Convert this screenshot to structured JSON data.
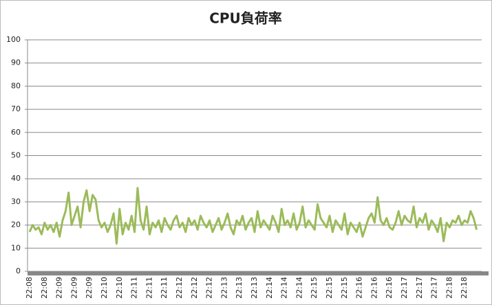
{
  "chart_data": {
    "type": "line",
    "title": "CPU負荷率",
    "categories": [
      "22:08",
      null,
      null,
      null,
      null,
      "22:08",
      null,
      null,
      null,
      null,
      "22:09",
      null,
      null,
      null,
      null,
      "22:09",
      null,
      null,
      null,
      null,
      "22:09",
      null,
      null,
      null,
      null,
      "22:10",
      null,
      null,
      null,
      null,
      "22:10",
      null,
      null,
      null,
      null,
      "22:11",
      null,
      null,
      null,
      null,
      "22:11",
      null,
      null,
      null,
      null,
      "22:11",
      null,
      null,
      null,
      null,
      "22:12",
      null,
      null,
      null,
      null,
      "22:12",
      null,
      null,
      null,
      null,
      "22:12",
      null,
      null,
      null,
      null,
      "22:13",
      null,
      null,
      null,
      null,
      "22:13",
      null,
      null,
      null,
      null,
      "22:13",
      null,
      null,
      null,
      null,
      "22:14",
      null,
      null,
      null,
      null,
      "22:14",
      null,
      null,
      null,
      null,
      "22:14",
      null,
      null,
      null,
      null,
      "22:15",
      null,
      null,
      null,
      null,
      "22:15",
      null,
      null,
      null,
      null,
      "22:15",
      null,
      null,
      null,
      null,
      "22:16",
      null,
      null,
      null,
      null,
      "22:16",
      null,
      null,
      null,
      null,
      "22:16",
      null,
      null,
      null,
      null,
      "22:17",
      null,
      null,
      null,
      null,
      "22:17",
      null,
      null,
      null,
      null,
      "22:17",
      null,
      null,
      null,
      null,
      "22:18",
      null,
      null,
      null,
      null,
      "22:18",
      null,
      null,
      null,
      null
    ],
    "values": [
      17,
      20,
      18,
      19,
      16,
      21,
      18,
      20,
      17,
      21,
      15,
      22,
      26,
      34,
      20,
      24,
      28,
      19,
      30,
      35,
      26,
      33,
      31,
      22,
      19,
      21,
      17,
      20,
      25,
      12,
      27,
      16,
      21,
      18,
      24,
      17,
      36,
      22,
      18,
      28,
      16,
      21,
      19,
      22,
      17,
      23,
      20,
      18,
      22,
      24,
      19,
      21,
      17,
      23,
      20,
      22,
      18,
      24,
      21,
      19,
      22,
      17,
      20,
      23,
      18,
      21,
      25,
      19,
      16,
      22,
      20,
      24,
      18,
      21,
      23,
      17,
      26,
      19,
      22,
      20,
      18,
      24,
      21,
      17,
      27,
      20,
      22,
      19,
      25,
      18,
      21,
      28,
      19,
      22,
      20,
      18,
      29,
      23,
      21,
      19,
      24,
      17,
      22,
      20,
      18,
      25,
      16,
      21,
      19,
      17,
      21,
      15,
      19,
      23,
      25,
      21,
      32,
      22,
      20,
      23,
      19,
      18,
      21,
      26,
      20,
      24,
      22,
      21,
      28,
      19,
      23,
      21,
      25,
      18,
      22,
      20,
      17,
      23,
      13,
      21,
      19,
      22,
      21,
      24,
      20,
      22,
      21,
      26,
      23,
      18
    ],
    "color": "#9bbb59",
    "ylim": [
      0,
      100
    ],
    "yticks": [
      0,
      10,
      20,
      30,
      40,
      50,
      60,
      70,
      80,
      90,
      100
    ],
    "grid": true
  }
}
